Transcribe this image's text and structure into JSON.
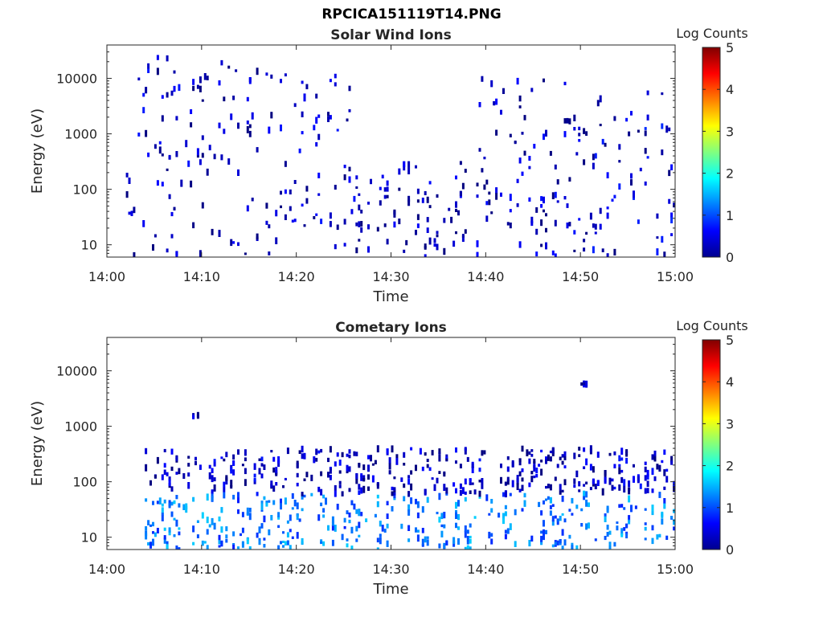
{
  "page": {
    "title": "RPCICA151119T14.PNG"
  },
  "colors": {
    "colormap": "jet",
    "axis": "#262626",
    "background": "#ffffff"
  },
  "chart_data": [
    {
      "type": "heatmap",
      "title": "Solar Wind Ions",
      "xlabel": "Time",
      "ylabel": "Energy (eV)",
      "yscale": "log",
      "xlim": [
        "14:00",
        "15:00"
      ],
      "ylim": [
        6,
        40000
      ],
      "x_ticks": [
        "14:00",
        "14:10",
        "14:20",
        "14:30",
        "14:40",
        "14:50",
        "15:00"
      ],
      "y_ticks": [
        "10",
        "100",
        "1000",
        "10000"
      ],
      "colorbar": {
        "label": "Log Counts",
        "range": [
          0,
          5
        ],
        "ticks": [
          "0",
          "1",
          "2",
          "3",
          "4",
          "5"
        ]
      },
      "grid": false,
      "activity_intervals": [
        {
          "start": "14:02",
          "end": "14:26",
          "energy_min": 6,
          "energy_max": 25000,
          "log_counts": 0.3
        },
        {
          "start": "14:26",
          "end": "14:38",
          "energy_min": 6,
          "energy_max": 300,
          "log_counts": 0.3
        },
        {
          "start": "14:39",
          "end": "14:51",
          "energy_min": 6,
          "energy_max": 10000,
          "log_counts": 0.3
        },
        {
          "start": "14:51",
          "end": "15:00",
          "energy_min": 6,
          "energy_max": 9000,
          "log_counts": 0.4
        }
      ]
    },
    {
      "type": "heatmap",
      "title": "Cometary Ions",
      "xlabel": "Time",
      "ylabel": "Energy (eV)",
      "yscale": "log",
      "xlim": [
        "14:00",
        "15:00"
      ],
      "ylim": [
        6,
        40000
      ],
      "x_ticks": [
        "14:00",
        "14:10",
        "14:20",
        "14:30",
        "14:40",
        "14:50",
        "15:00"
      ],
      "y_ticks": [
        "10",
        "100",
        "1000",
        "10000"
      ],
      "colorbar": {
        "label": "Log Counts",
        "range": [
          0,
          5
        ],
        "ticks": [
          "0",
          "1",
          "2",
          "3",
          "4",
          "5"
        ]
      },
      "grid": false,
      "activity_intervals": [
        {
          "start": "14:04",
          "end": "15:00",
          "energy_min": 6,
          "energy_max": 60,
          "log_counts": 1.2
        },
        {
          "start": "14:04",
          "end": "15:00",
          "energy_min": 60,
          "energy_max": 400,
          "log_counts": 0.3
        },
        {
          "start": "14:09",
          "end": "14:10",
          "energy_min": 900,
          "energy_max": 2000,
          "log_counts": 0.2
        },
        {
          "start": "14:50",
          "end": "14:51",
          "energy_min": 5000,
          "energy_max": 6000,
          "log_counts": 0.2
        }
      ]
    }
  ]
}
